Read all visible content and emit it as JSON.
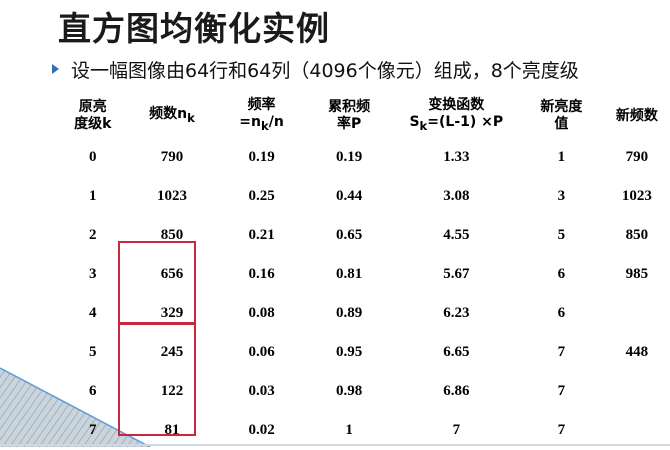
{
  "slide": {
    "title": "直方图均衡化实例",
    "bullet": "设一幅图像由64行和64列（4096个像元）组成，8个亮度级"
  },
  "table": {
    "headers": [
      [
        "原亮",
        "度级k"
      ],
      [
        "频数n",
        "k"
      ],
      [
        "频率",
        "=n",
        "k",
        "/n"
      ],
      [
        "累积频",
        "率P"
      ],
      [
        "变换函数",
        "S",
        "k",
        "=(L-1) ×P"
      ],
      [
        "新亮度",
        "值"
      ],
      [
        "新频数"
      ]
    ],
    "rows": [
      [
        "0",
        "790",
        "0.19",
        "0.19",
        "1.33",
        "1",
        "790"
      ],
      [
        "1",
        "1023",
        "0.25",
        "0.44",
        "3.08",
        "3",
        "1023"
      ],
      [
        "2",
        "850",
        "0.21",
        "0.65",
        "4.55",
        "5",
        "850"
      ],
      [
        "3",
        "656",
        "0.16",
        "0.81",
        "5.67",
        "6",
        "985"
      ],
      [
        "4",
        "329",
        "0.08",
        "0.89",
        "6.23",
        "6",
        ""
      ],
      [
        "5",
        "245",
        "0.06",
        "0.95",
        "6.65",
        "7",
        "448"
      ],
      [
        "6",
        "122",
        "0.03",
        "0.98",
        "6.86",
        "7",
        ""
      ],
      [
        "7",
        "81",
        "0.02",
        "1",
        "7",
        "7",
        ""
      ]
    ]
  },
  "colors": {
    "highlight_box": "#c8283c",
    "bullet": "#2f6fb3",
    "corner_decoration": "#9bb7cc"
  }
}
